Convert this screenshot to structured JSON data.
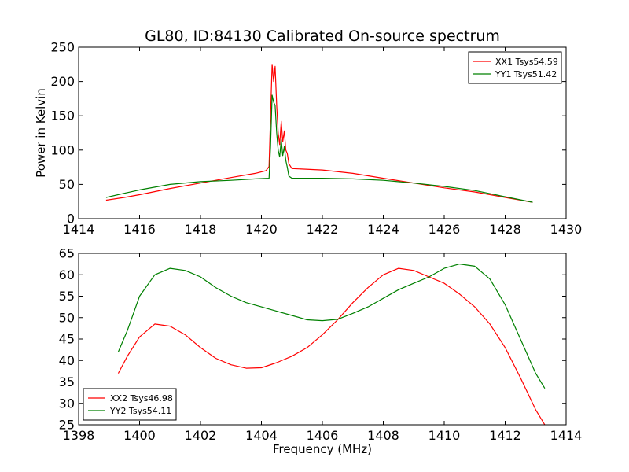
{
  "title": "GL80, ID:84130 Calibrated On-source spectrum",
  "chart_data": [
    {
      "type": "line",
      "xlim": [
        1414,
        1430
      ],
      "ylim": [
        0,
        250
      ],
      "xticks": [
        "1414",
        "1416",
        "1418",
        "1420",
        "1422",
        "1424",
        "1426",
        "1428",
        "1430"
      ],
      "yticks": [
        "0",
        "50",
        "100",
        "150",
        "200",
        "250"
      ],
      "xlabel": "",
      "ylabel": "Power in Kelvin",
      "legend_position": "top-right",
      "grid": false,
      "series": [
        {
          "name": "XX1 Tsys54.59",
          "color": "#ff0000",
          "points": [
            [
              1414.9,
              27
            ],
            [
              1415.5,
              31
            ],
            [
              1416,
              35
            ],
            [
              1417,
              44
            ],
            [
              1418,
              52
            ],
            [
              1419,
              60
            ],
            [
              1419.8,
              66
            ],
            [
              1420.15,
              70
            ],
            [
              1420.25,
              76
            ],
            [
              1420.3,
              150
            ],
            [
              1420.35,
              225
            ],
            [
              1420.4,
              200
            ],
            [
              1420.45,
              222
            ],
            [
              1420.5,
              165
            ],
            [
              1420.55,
              125
            ],
            [
              1420.6,
              108
            ],
            [
              1420.65,
              142
            ],
            [
              1420.7,
              112
            ],
            [
              1420.75,
              128
            ],
            [
              1420.8,
              100
            ],
            [
              1420.85,
              95
            ],
            [
              1420.9,
              80
            ],
            [
              1421,
              73
            ],
            [
              1422,
              71
            ],
            [
              1423,
              66
            ],
            [
              1424,
              59
            ],
            [
              1425,
              52
            ],
            [
              1426,
              45
            ],
            [
              1427,
              39
            ],
            [
              1428,
              31
            ],
            [
              1428.9,
              24
            ]
          ]
        },
        {
          "name": "YY1 Tsys51.42",
          "color": "#008000",
          "points": [
            [
              1414.9,
              31
            ],
            [
              1415.5,
              37
            ],
            [
              1416,
              42
            ],
            [
              1417,
              50
            ],
            [
              1418,
              54
            ],
            [
              1419,
              56
            ],
            [
              1419.8,
              58
            ],
            [
              1420.25,
              59
            ],
            [
              1420.3,
              105
            ],
            [
              1420.35,
              180
            ],
            [
              1420.4,
              170
            ],
            [
              1420.45,
              165
            ],
            [
              1420.5,
              125
            ],
            [
              1420.55,
              100
            ],
            [
              1420.6,
              90
            ],
            [
              1420.65,
              115
            ],
            [
              1420.7,
              92
            ],
            [
              1420.75,
              105
            ],
            [
              1420.8,
              85
            ],
            [
              1420.85,
              75
            ],
            [
              1420.9,
              62
            ],
            [
              1421,
              59
            ],
            [
              1422,
              59
            ],
            [
              1423,
              58
            ],
            [
              1424,
              56
            ],
            [
              1425,
              52
            ],
            [
              1426,
              47
            ],
            [
              1427,
              41
            ],
            [
              1428,
              32
            ],
            [
              1428.9,
              24
            ]
          ]
        }
      ]
    },
    {
      "type": "line",
      "xlim": [
        1398,
        1414
      ],
      "ylim": [
        25,
        65
      ],
      "xticks": [
        "1398",
        "1400",
        "1402",
        "1404",
        "1406",
        "1408",
        "1410",
        "1412",
        "1414"
      ],
      "yticks": [
        "25",
        "30",
        "35",
        "40",
        "45",
        "50",
        "55",
        "60",
        "65"
      ],
      "xlabel": "Frequency (MHz)",
      "ylabel": "",
      "legend_position": "bottom-left",
      "grid": false,
      "series": [
        {
          "name": "XX2 Tsys46.98",
          "color": "#ff0000",
          "points": [
            [
              1399.3,
              37
            ],
            [
              1399.6,
              41
            ],
            [
              1400,
              45.5
            ],
            [
              1400.5,
              48.5
            ],
            [
              1401,
              48
            ],
            [
              1401.5,
              46
            ],
            [
              1402,
              43
            ],
            [
              1402.5,
              40.5
            ],
            [
              1403,
              39
            ],
            [
              1403.5,
              38.2
            ],
            [
              1404,
              38.3
            ],
            [
              1404.5,
              39.5
            ],
            [
              1405,
              41
            ],
            [
              1405.5,
              43
            ],
            [
              1406,
              46
            ],
            [
              1406.5,
              49.5
            ],
            [
              1407,
              53.5
            ],
            [
              1407.5,
              57
            ],
            [
              1408,
              60
            ],
            [
              1408.5,
              61.5
            ],
            [
              1409,
              61
            ],
            [
              1409.5,
              59.5
            ],
            [
              1410,
              58
            ],
            [
              1410.5,
              55.5
            ],
            [
              1411,
              52.5
            ],
            [
              1411.5,
              48.5
            ],
            [
              1412,
              43
            ],
            [
              1412.5,
              36
            ],
            [
              1413,
              28.5
            ],
            [
              1413.3,
              25
            ]
          ]
        },
        {
          "name": "YY2 Tsys54.11",
          "color": "#008000",
          "points": [
            [
              1399.3,
              42
            ],
            [
              1399.6,
              47
            ],
            [
              1400,
              55
            ],
            [
              1400.5,
              60
            ],
            [
              1401,
              61.5
            ],
            [
              1401.5,
              61
            ],
            [
              1402,
              59.5
            ],
            [
              1402.5,
              57
            ],
            [
              1403,
              55
            ],
            [
              1403.5,
              53.5
            ],
            [
              1404,
              52.5
            ],
            [
              1404.5,
              51.5
            ],
            [
              1405,
              50.5
            ],
            [
              1405.5,
              49.5
            ],
            [
              1406,
              49.3
            ],
            [
              1406.5,
              49.6
            ],
            [
              1407,
              51
            ],
            [
              1407.5,
              52.5
            ],
            [
              1408,
              54.5
            ],
            [
              1408.5,
              56.5
            ],
            [
              1409,
              58
            ],
            [
              1409.5,
              59.5
            ],
            [
              1410,
              61.5
            ],
            [
              1410.5,
              62.5
            ],
            [
              1411,
              62
            ],
            [
              1411.5,
              59
            ],
            [
              1412,
              53
            ],
            [
              1412.5,
              45
            ],
            [
              1413,
              37
            ],
            [
              1413.3,
              33.5
            ]
          ]
        }
      ]
    }
  ]
}
